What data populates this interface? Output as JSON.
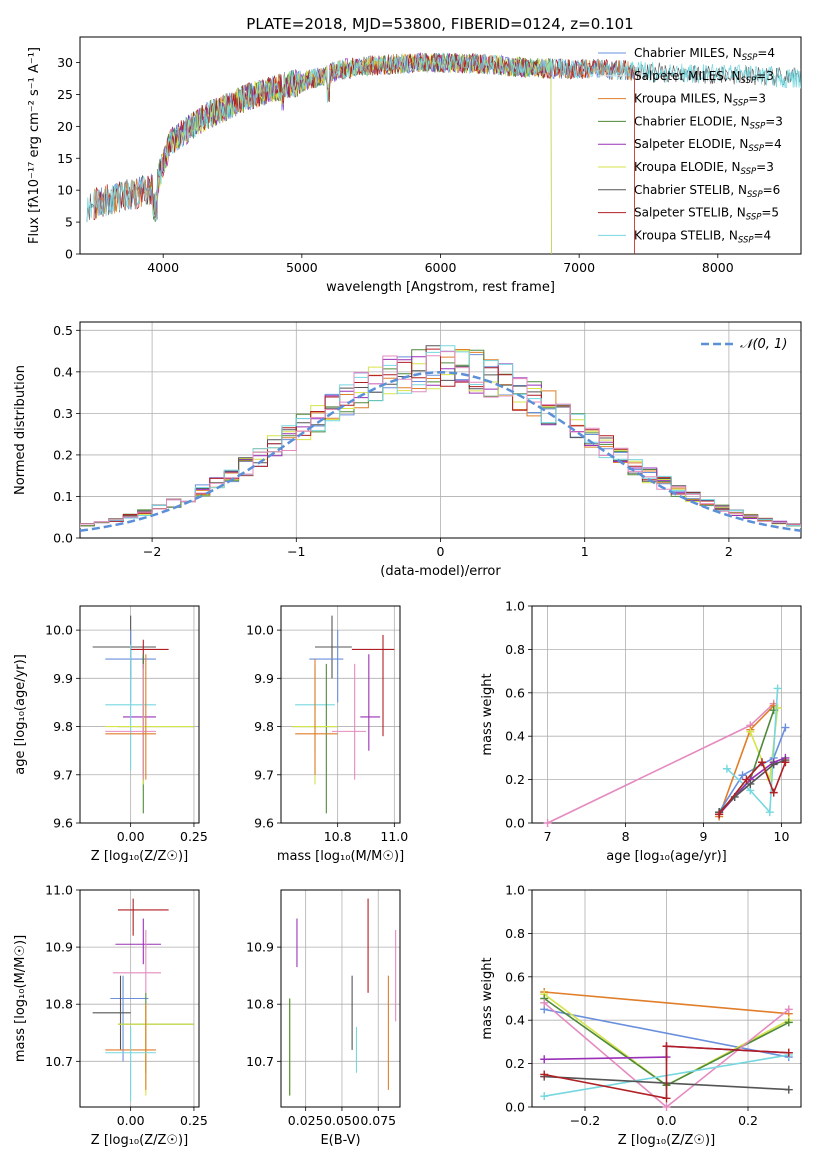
{
  "figure_title": "PLATE=2018, MJD=53800, FIBERID=0124, z=0.101",
  "colors": {
    "Chabrier MILES": "#6a8fdc",
    "Salpeter MILES": "#e0e0e0",
    "Kroupa MILES": "#e07e2a",
    "Chabrier ELODIE": "#4e8a3a",
    "Salpeter ELODIE": "#9a30b8",
    "Kroupa ELODIE": "#d6e34a",
    "Chabrier STELIB": "#555555",
    "Salpeter STELIB": "#b01f24",
    "Kroupa STELIB": "#76d7df",
    "pink": "#e48bc0",
    "gaussian": "#5b8fd8",
    "grid": "#b0b0b0"
  },
  "chart_data": [
    {
      "id": "spectrum",
      "type": "line",
      "xlabel": "wavelength [Angstrom, rest frame]",
      "ylabel": "Flux [fλ10⁻¹⁷ erg cm⁻² s⁻¹ A⁻¹]",
      "xlim": [
        3400,
        8600
      ],
      "ylim": [
        0,
        34
      ],
      "xticks": [
        4000,
        5000,
        6000,
        7000,
        8000
      ],
      "yticks": [
        0,
        5,
        10,
        15,
        20,
        25,
        30
      ],
      "grid": false,
      "legend_position": "right",
      "legend": [
        {
          "label": "Chabrier MILES, N",
          "sub": "SSP",
          "tail": "=4",
          "color_key": "Chabrier MILES"
        },
        {
          "label": "Salpeter MILES, N",
          "sub": "SSP",
          "tail": "=3",
          "color_key": "Salpeter MILES"
        },
        {
          "label": "Kroupa MILES, N",
          "sub": "SSP",
          "tail": "=3",
          "color_key": "Kroupa MILES"
        },
        {
          "label": "Chabrier ELODIE, N",
          "sub": "SSP",
          "tail": "=3",
          "color_key": "Chabrier ELODIE"
        },
        {
          "label": "Salpeter ELODIE, N",
          "sub": "SSP",
          "tail": "=4",
          "color_key": "Salpeter ELODIE"
        },
        {
          "label": "Kroupa ELODIE, N",
          "sub": "SSP",
          "tail": "=3",
          "color_key": "Kroupa ELODIE"
        },
        {
          "label": "Chabrier STELIB, N",
          "sub": "SSP",
          "tail": "=6",
          "color_key": "Chabrier STELIB"
        },
        {
          "label": "Salpeter STELIB, N",
          "sub": "SSP",
          "tail": "=5",
          "color_key": "Salpeter STELIB"
        },
        {
          "label": "Kroupa STELIB, N",
          "sub": "SSP",
          "tail": "=4",
          "color_key": "Kroupa STELIB"
        }
      ],
      "continuum": {
        "x": [
          3450,
          3600,
          3800,
          3950,
          4050,
          4300,
          4600,
          4900,
          5100,
          5300,
          5500,
          5700,
          6000,
          6300,
          6600,
          6900,
          7100,
          7300,
          7600,
          7900,
          8200,
          8600
        ],
        "y": [
          7.5,
          8.5,
          9.5,
          10.5,
          17.5,
          21.5,
          24.5,
          26.5,
          27.5,
          29.0,
          29.5,
          29.8,
          30.0,
          29.8,
          29.2,
          29.0,
          29.0,
          28.8,
          28.5,
          28.2,
          28.0,
          27.5
        ]
      },
      "series_ranges": [
        {
          "name": "Chabrier MILES",
          "x": [
            3500,
            7400
          ]
        },
        {
          "name": "Salpeter MILES",
          "x": [
            3500,
            7400
          ]
        },
        {
          "name": "Kroupa MILES",
          "x": [
            3500,
            7400
          ]
        },
        {
          "name": "Chabrier ELODIE",
          "x": [
            3900,
            6800
          ]
        },
        {
          "name": "Salpeter ELODIE",
          "x": [
            3900,
            6800
          ]
        },
        {
          "name": "Kroupa ELODIE",
          "x": [
            3900,
            6800
          ]
        },
        {
          "name": "Chabrier STELIB",
          "x": [
            3450,
            8600
          ]
        },
        {
          "name": "Salpeter STELIB",
          "x": [
            3500,
            7400
          ]
        },
        {
          "name": "Kroupa STELIB",
          "x": [
            3450,
            8600
          ]
        }
      ]
    },
    {
      "id": "residuals",
      "type": "line",
      "xlabel": "(data-model)/error",
      "ylabel": "Normed distribution",
      "xlim": [
        -2.5,
        2.5
      ],
      "ylim": [
        0,
        0.52
      ],
      "xticks": [
        -2,
        -1,
        0,
        1,
        2
      ],
      "yticks": [
        0.0,
        0.1,
        0.2,
        0.3,
        0.4,
        0.5
      ],
      "grid": true,
      "legend": [
        {
          "label": "𝒩(0, 1)",
          "color_key": "gaussian"
        }
      ],
      "legend_position": "top-right",
      "gaussian": {
        "mu": 0,
        "sigma": 1
      }
    },
    {
      "id": "age_vs_Z",
      "type": "scatter",
      "xlabel": "Z [log₁₀(Z/Z☉)]",
      "ylabel": "age  [log₁₀(age/yr)]",
      "xlim": [
        -0.2,
        0.27
      ],
      "ylim": [
        9.6,
        10.05
      ],
      "xticks": [
        0.0,
        0.25
      ],
      "xticklabels": [
        "0.00",
        "0.25"
      ],
      "yticks": [
        9.6,
        9.7,
        9.8,
        9.9,
        10.0
      ],
      "grid": true,
      "points": [
        {
          "c": "Chabrier STELIB",
          "x": 0.0,
          "xe": [
            -0.15,
            0.1
          ],
          "y": 9.965,
          "ye": [
            9.9,
            10.03
          ]
        },
        {
          "c": "Chabrier MILES",
          "x": 0.0,
          "xe": [
            -0.1,
            0.1
          ],
          "y": 9.94,
          "ye": [
            9.85,
            10.0
          ]
        },
        {
          "c": "Salpeter STELIB",
          "x": 0.05,
          "xe": [
            0.0,
            0.15
          ],
          "y": 9.96,
          "ye": [
            9.7,
            9.98
          ]
        },
        {
          "c": "Salpeter ELODIE",
          "x": 0.05,
          "xe": [
            -0.03,
            0.1
          ],
          "y": 9.82,
          "ye": [
            9.7,
            9.95
          ]
        },
        {
          "c": "Kroupa STELIB",
          "x": 0.0,
          "xe": [
            -0.1,
            0.1
          ],
          "y": 9.845,
          "ye": [
            9.71,
            9.97
          ]
        },
        {
          "c": "Chabrier ELODIE",
          "x": 0.05,
          "xe": [
            -0.05,
            0.25
          ],
          "y": 9.8,
          "ye": [
            9.62,
            9.95
          ]
        },
        {
          "c": "Kroupa ELODIE",
          "x": 0.05,
          "xe": [
            -0.1,
            0.25
          ],
          "y": 9.8,
          "ye": [
            9.68,
            9.92
          ]
        },
        {
          "c": "pink",
          "x": 0.05,
          "xe": [
            -0.1,
            0.1
          ],
          "y": 9.79,
          "ye": [
            9.69,
            9.93
          ]
        },
        {
          "c": "Kroupa MILES",
          "x": 0.06,
          "xe": [
            -0.1,
            0.1
          ],
          "y": 9.785,
          "ye": [
            9.69,
            9.95
          ]
        }
      ]
    },
    {
      "id": "age_vs_mass",
      "type": "scatter",
      "xlabel": "mass [log₁₀(M/M☉)]",
      "ylabel": "",
      "xlim": [
        10.6,
        11.02
      ],
      "ylim": [
        9.6,
        10.05
      ],
      "xticks": [
        10.8,
        11.0
      ],
      "xticklabels": [
        "10.8",
        "11.0"
      ],
      "yticks": [
        9.6,
        9.7,
        9.8,
        9.9,
        10.0
      ],
      "grid": true,
      "points": [
        {
          "c": "Chabrier STELIB",
          "x": 10.78,
          "xe": [
            10.72,
            10.85
          ],
          "y": 9.965,
          "ye": [
            9.9,
            10.03
          ]
        },
        {
          "c": "Chabrier MILES",
          "x": 10.8,
          "xe": [
            10.7,
            10.82
          ],
          "y": 9.94,
          "ye": [
            9.85,
            10.0
          ]
        },
        {
          "c": "Salpeter STELIB",
          "x": 10.96,
          "xe": [
            10.85,
            11.0
          ],
          "y": 9.96,
          "ye": [
            9.78,
            9.99
          ]
        },
        {
          "c": "Salpeter ELODIE",
          "x": 10.91,
          "xe": [
            10.88,
            10.95
          ],
          "y": 9.82,
          "ye": [
            9.75,
            9.95
          ]
        },
        {
          "c": "Kroupa STELIB",
          "x": 10.72,
          "xe": [
            10.65,
            10.79
          ],
          "y": 9.845,
          "ye": [
            9.75,
            9.93
          ]
        },
        {
          "c": "Chabrier ELODIE",
          "x": 10.76,
          "xe": [
            10.64,
            10.8
          ],
          "y": 9.8,
          "ye": [
            9.62,
            9.93
          ]
        },
        {
          "c": "Kroupa ELODIE",
          "x": 10.72,
          "xe": [
            10.64,
            10.8
          ],
          "y": 9.8,
          "ye": [
            9.68,
            9.92
          ]
        },
        {
          "c": "pink",
          "x": 10.86,
          "xe": [
            10.78,
            10.9
          ],
          "y": 9.79,
          "ye": [
            9.69,
            9.93
          ]
        },
        {
          "c": "Kroupa MILES",
          "x": 10.72,
          "xe": [
            10.65,
            10.8
          ],
          "y": 9.785,
          "ye": [
            9.7,
            9.94
          ]
        }
      ]
    },
    {
      "id": "weight_vs_age",
      "type": "line",
      "xlabel": "age  [log₁₀(age/yr)]",
      "ylabel": "mass weight",
      "xlim": [
        6.8,
        10.25
      ],
      "ylim": [
        0,
        1
      ],
      "xticks": [
        7,
        8,
        9,
        10
      ],
      "yticks": [
        0.0,
        0.2,
        0.4,
        0.6,
        0.8,
        1.0
      ],
      "grid": true,
      "series": [
        {
          "c": "pink",
          "x": [
            7.0,
            9.6,
            9.9
          ],
          "y": [
            0.0,
            0.45,
            0.55
          ]
        },
        {
          "c": "Kroupa MILES",
          "x": [
            9.2,
            9.6,
            9.9
          ],
          "y": [
            0.03,
            0.43,
            0.54
          ]
        },
        {
          "c": "Kroupa ELODIE",
          "x": [
            9.6,
            9.85,
            9.95
          ],
          "y": [
            0.42,
            0.2,
            0.53
          ]
        },
        {
          "c": "Chabrier MILES",
          "x": [
            9.2,
            9.5,
            9.9,
            10.05
          ],
          "y": [
            0.05,
            0.22,
            0.3,
            0.44
          ]
        },
        {
          "c": "Chabrier ELODIE",
          "x": [
            9.2,
            9.6,
            9.9
          ],
          "y": [
            0.05,
            0.2,
            0.52
          ]
        },
        {
          "c": "Kroupa STELIB",
          "x": [
            9.3,
            9.6,
            9.85,
            9.95
          ],
          "y": [
            0.25,
            0.15,
            0.05,
            0.62
          ]
        },
        {
          "c": "Salpeter ELODIE",
          "x": [
            9.2,
            9.6,
            9.9,
            10.05
          ],
          "y": [
            0.04,
            0.2,
            0.28,
            0.3
          ]
        },
        {
          "c": "Chabrier STELIB",
          "x": [
            9.2,
            9.4,
            9.6,
            9.9,
            10.05
          ],
          "y": [
            0.05,
            0.12,
            0.18,
            0.27,
            0.29
          ]
        },
        {
          "c": "Salpeter STELIB",
          "x": [
            9.2,
            9.55,
            9.75,
            9.9,
            10.05
          ],
          "y": [
            0.04,
            0.2,
            0.28,
            0.14,
            0.28
          ]
        }
      ]
    },
    {
      "id": "mass_vs_Z",
      "type": "scatter",
      "xlabel": "Z [log₁₀(Z/Z☉)]",
      "ylabel": "mass [log₁₀(M/M☉)]",
      "xlim": [
        -0.2,
        0.27
      ],
      "ylim": [
        10.62,
        11.0
      ],
      "xticks": [
        0.0,
        0.25
      ],
      "xticklabels": [
        "0.00",
        "0.25"
      ],
      "yticks": [
        10.7,
        10.8,
        10.9,
        11.0
      ],
      "grid": true,
      "points": [
        {
          "c": "Salpeter STELIB",
          "x": 0.01,
          "xe": [
            -0.05,
            0.15
          ],
          "y": 10.965,
          "ye": [
            10.92,
            10.985
          ]
        },
        {
          "c": "Salpeter ELODIE",
          "x": 0.05,
          "xe": [
            -0.06,
            0.12
          ],
          "y": 10.905,
          "ye": [
            10.87,
            10.95
          ]
        },
        {
          "c": "pink",
          "x": 0.06,
          "xe": [
            -0.07,
            0.12
          ],
          "y": 10.855,
          "ye": [
            10.82,
            10.93
          ]
        },
        {
          "c": "Chabrier MILES",
          "x": -0.03,
          "xe": [
            -0.08,
            0.07
          ],
          "y": 10.81,
          "ye": [
            10.7,
            10.85
          ]
        },
        {
          "c": "Chabrier STELIB",
          "x": -0.04,
          "xe": [
            -0.15,
            0.0
          ],
          "y": 10.785,
          "ye": [
            10.72,
            10.85
          ]
        },
        {
          "c": "Chabrier ELODIE",
          "x": 0.06,
          "xe": [
            -0.05,
            0.25
          ],
          "y": 10.765,
          "ye": [
            10.68,
            10.82
          ]
        },
        {
          "c": "Kroupa ELODIE",
          "x": 0.06,
          "xe": [
            -0.05,
            0.25
          ],
          "y": 10.765,
          "ye": [
            10.64,
            10.8
          ]
        },
        {
          "c": "Kroupa MILES",
          "x": 0.06,
          "xe": [
            -0.1,
            0.1
          ],
          "y": 10.72,
          "ye": [
            10.65,
            10.8
          ]
        },
        {
          "c": "Kroupa STELIB",
          "x": 0.0,
          "xe": [
            -0.1,
            0.1
          ],
          "y": 10.715,
          "ye": [
            10.63,
            10.76
          ]
        }
      ]
    },
    {
      "id": "mass_vs_ebv",
      "type": "scatter",
      "xlabel": "E(B-V)",
      "ylabel": "",
      "xlim": [
        0.008,
        0.09
      ],
      "ylim": [
        10.62,
        11.0
      ],
      "xticks": [
        0.025,
        0.05,
        0.075
      ],
      "xticklabels": [
        "0.025",
        "0.050",
        "0.075"
      ],
      "yticks": [
        10.7,
        10.8,
        10.9
      ],
      "grid": true,
      "points": [
        {
          "c": "Salpeter ELODIE",
          "x": 0.019,
          "y": 10.905,
          "ye": [
            10.865,
            10.95
          ]
        },
        {
          "c": "Kroupa ELODIE",
          "x": 0.014,
          "y": 10.72,
          "ye": [
            10.64,
            10.81
          ]
        },
        {
          "c": "Chabrier ELODIE",
          "x": 0.014,
          "y": 10.72,
          "ye": [
            10.64,
            10.81
          ]
        },
        {
          "c": "Chabrier STELIB",
          "x": 0.057,
          "y": 10.785,
          "ye": [
            10.72,
            10.85
          ]
        },
        {
          "c": "Salpeter STELIB",
          "x": 0.068,
          "y": 10.9,
          "ye": [
            10.82,
            10.985
          ]
        },
        {
          "c": "Kroupa STELIB",
          "x": 0.06,
          "y": 10.72,
          "ye": [
            10.68,
            10.76
          ]
        },
        {
          "c": "Kroupa MILES",
          "x": 0.082,
          "y": 10.75,
          "ye": [
            10.65,
            10.85
          ]
        },
        {
          "c": "pink",
          "x": 0.087,
          "y": 10.85,
          "ye": [
            10.77,
            10.93
          ]
        }
      ]
    },
    {
      "id": "weight_vs_Z",
      "type": "line",
      "xlabel": "Z [log₁₀(Z/Z☉)]",
      "ylabel": "mass weight",
      "xlim": [
        -0.33,
        0.33
      ],
      "ylim": [
        0,
        1
      ],
      "xticks": [
        -0.2,
        0.0,
        0.2
      ],
      "xticklabels": [
        "−0.2",
        "0.0",
        "0.2"
      ],
      "yticks": [
        0.0,
        0.2,
        0.4,
        0.6,
        0.8,
        1.0
      ],
      "grid": true,
      "series": [
        {
          "c": "Kroupa MILES",
          "x": [
            -0.3,
            0.3
          ],
          "y": [
            0.53,
            0.43
          ]
        },
        {
          "c": "Chabrier MILES",
          "x": [
            -0.3,
            0.3
          ],
          "y": [
            0.45,
            0.23
          ]
        },
        {
          "c": "Kroupa ELODIE",
          "x": [
            -0.3,
            0.0,
            0.3
          ],
          "y": [
            0.52,
            0.1,
            0.4
          ]
        },
        {
          "c": "Chabrier ELODIE",
          "x": [
            -0.3,
            0.0,
            0.3
          ],
          "y": [
            0.5,
            0.1,
            0.39
          ]
        },
        {
          "c": "pink",
          "x": [
            -0.3,
            0.0,
            0.3
          ],
          "y": [
            0.48,
            0.0,
            0.45
          ]
        },
        {
          "c": "Salpeter ELODIE",
          "x": [
            -0.3,
            0.0,
            0.0,
            0.3
          ],
          "y": [
            0.22,
            0.23,
            0.28,
            0.25
          ]
        },
        {
          "c": "Kroupa STELIB",
          "x": [
            -0.3,
            0.3
          ],
          "y": [
            0.05,
            0.24
          ]
        },
        {
          "c": "Chabrier STELIB",
          "x": [
            -0.3,
            0.3
          ],
          "y": [
            0.14,
            0.08
          ]
        },
        {
          "c": "Salpeter STELIB",
          "x": [
            -0.3,
            0.0,
            0.0,
            0.3
          ],
          "y": [
            0.15,
            0.04,
            0.28,
            0.25
          ]
        }
      ]
    }
  ]
}
